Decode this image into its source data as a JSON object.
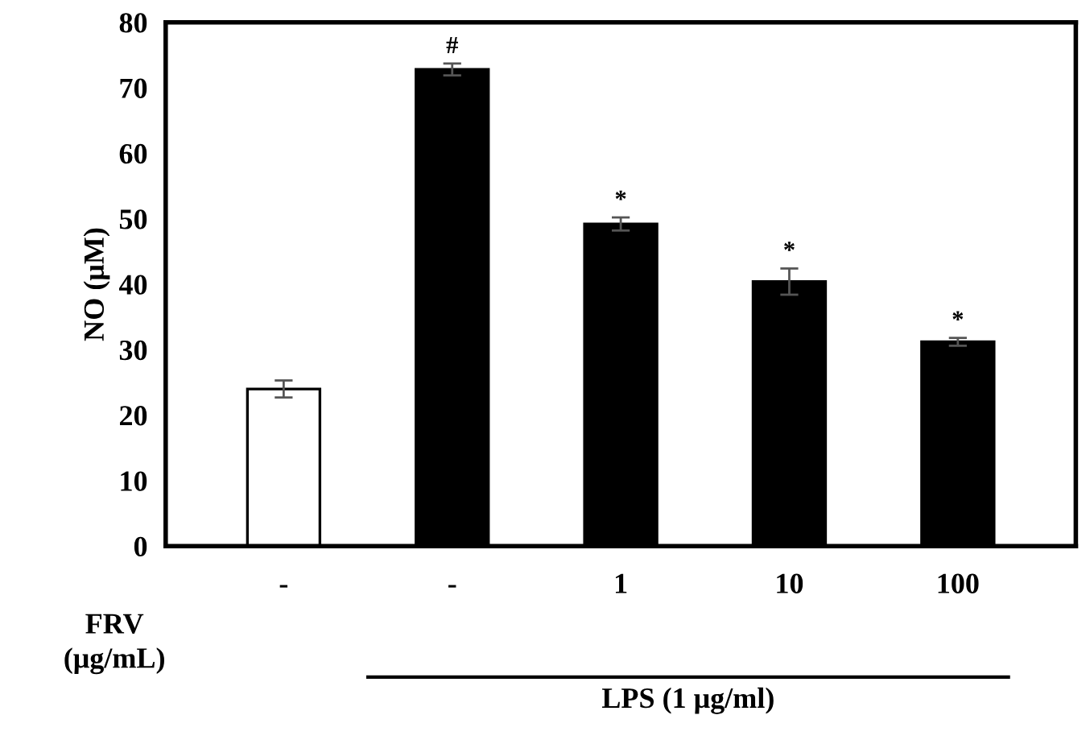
{
  "chart_data": {
    "type": "bar",
    "ylabel": "NO (μM)",
    "xlabel": "FRV\n(μg/mL)",
    "categories": [
      "-",
      "-",
      "1",
      "10",
      "100"
    ],
    "values": [
      24.0,
      72.8,
      49.2,
      40.4,
      31.2
    ],
    "errors": [
      1.3,
      0.9,
      1.0,
      2.0,
      0.6
    ],
    "colors": [
      "#ffffff",
      "#000000",
      "#000000",
      "#000000",
      "#000000"
    ],
    "value_labels": [
      null,
      "#",
      "*",
      "*",
      "*"
    ],
    "annotations": [
      "LPS (1 μg/ml)"
    ],
    "ylim": [
      0,
      80
    ],
    "yticks": [
      0,
      10,
      20,
      30,
      40,
      50,
      60,
      70,
      80
    ],
    "grid": false
  }
}
